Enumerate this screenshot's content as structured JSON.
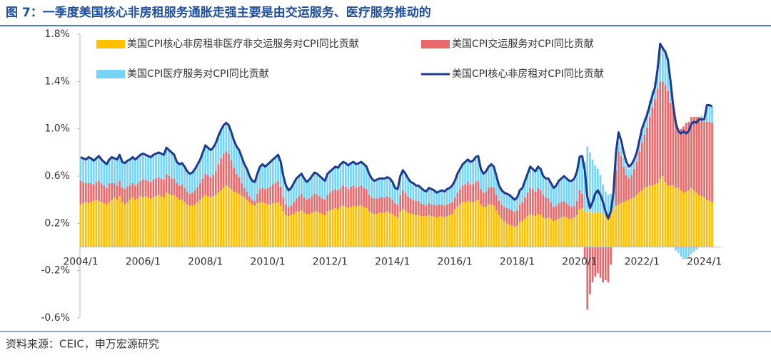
{
  "chart_data": {
    "type": "stacked-bar-line",
    "title": "图 7：一季度美国核心非房租服务通胀走强主要是由交运服务、医疗服务推动的",
    "source": "资料来源：CEIC，申万宏源研究",
    "categories": [
      "2004/1",
      null,
      null,
      null,
      null,
      null,
      null,
      null,
      null,
      null,
      null,
      null,
      null,
      null,
      null,
      null,
      null,
      null,
      null,
      null,
      null,
      null,
      null,
      null,
      "2006/1",
      null,
      null,
      null,
      null,
      null,
      null,
      null,
      null,
      null,
      null,
      null,
      null,
      null,
      null,
      null,
      null,
      null,
      null,
      null,
      null,
      null,
      null,
      null,
      "2008/1",
      null,
      null,
      null,
      null,
      null,
      null,
      null,
      null,
      null,
      null,
      null,
      null,
      null,
      null,
      null,
      null,
      null,
      null,
      null,
      null,
      null,
      null,
      null,
      "2010/1",
      null,
      null,
      null,
      null,
      null,
      null,
      null,
      null,
      null,
      null,
      null,
      null,
      null,
      null,
      null,
      null,
      null,
      null,
      null,
      null,
      null,
      null,
      null,
      "2012/1",
      null,
      null,
      null,
      null,
      null,
      null,
      null,
      null,
      null,
      null,
      null,
      null,
      null,
      null,
      null,
      null,
      null,
      null,
      null,
      null,
      null,
      null,
      null,
      "2014/1",
      null,
      null,
      null,
      null,
      null,
      null,
      null,
      null,
      null,
      null,
      null,
      null,
      null,
      null,
      null,
      null,
      null,
      null,
      null,
      null,
      null,
      null,
      null,
      "2016/1",
      null,
      null,
      null,
      null,
      null,
      null,
      null,
      null,
      null,
      null,
      null,
      null,
      null,
      null,
      null,
      null,
      null,
      null,
      null,
      null,
      null,
      null,
      null,
      "2018/1",
      null,
      null,
      null,
      null,
      null,
      null,
      null,
      null,
      null,
      null,
      null,
      null,
      null,
      null,
      null,
      null,
      null,
      null,
      null,
      null,
      null,
      null,
      null,
      "2020/1",
      null,
      null,
      null,
      null,
      null,
      null,
      null,
      null,
      null,
      null,
      null,
      null,
      null,
      null,
      null,
      null,
      null,
      null,
      null,
      null,
      null,
      null,
      null,
      "2022/1",
      null,
      null,
      null,
      null,
      null,
      null,
      null,
      null,
      null,
      null,
      null,
      null,
      null,
      null,
      null,
      null,
      null,
      null,
      null,
      null,
      null,
      null,
      null,
      "2024/1",
      null,
      null,
      null
    ],
    "series": [
      {
        "name": "美国CPI核心非房租非医疗非交运服务对CPI同比贡献",
        "color": "#ffc000",
        "kind": "bar",
        "values": [
          0.36,
          0.37,
          0.38,
          0.37,
          0.38,
          0.39,
          0.4,
          0.39,
          0.38,
          0.37,
          0.36,
          0.38,
          0.4,
          0.42,
          0.4,
          0.43,
          0.38,
          0.36,
          0.38,
          0.4,
          0.42,
          0.4,
          0.41,
          0.43,
          0.42,
          0.43,
          0.42,
          0.41,
          0.42,
          0.43,
          0.44,
          0.43,
          0.42,
          0.46,
          0.45,
          0.44,
          0.44,
          0.42,
          0.4,
          0.4,
          0.38,
          0.36,
          0.35,
          0.35,
          0.36,
          0.38,
          0.4,
          0.42,
          0.44,
          0.43,
          0.42,
          0.43,
          0.44,
          0.46,
          0.48,
          0.5,
          0.52,
          0.51,
          0.49,
          0.47,
          0.46,
          0.45,
          0.43,
          0.42,
          0.4,
          0.38,
          0.36,
          0.35,
          0.37,
          0.38,
          0.38,
          0.37,
          0.36,
          0.36,
          0.37,
          0.37,
          0.38,
          0.35,
          0.3,
          0.27,
          0.26,
          0.27,
          0.28,
          0.3,
          0.3,
          0.31,
          0.29,
          0.28,
          0.28,
          0.29,
          0.3,
          0.3,
          0.29,
          0.28,
          0.27,
          0.3,
          0.31,
          0.32,
          0.33,
          0.32,
          0.34,
          0.35,
          0.34,
          0.33,
          0.34,
          0.35,
          0.34,
          0.35,
          0.35,
          0.34,
          0.33,
          0.3,
          0.29,
          0.28,
          0.28,
          0.29,
          0.29,
          0.29,
          0.3,
          0.29,
          0.28,
          0.26,
          0.25,
          0.3,
          0.32,
          0.31,
          0.29,
          0.28,
          0.28,
          0.27,
          0.27,
          0.26,
          0.26,
          0.26,
          0.27,
          0.26,
          0.26,
          0.25,
          0.26,
          0.26,
          0.25,
          0.26,
          0.27,
          0.28,
          0.32,
          0.34,
          0.36,
          0.38,
          0.38,
          0.39,
          0.38,
          0.38,
          0.39,
          0.4,
          0.36,
          0.34,
          0.34,
          0.36,
          0.36,
          0.35,
          0.31,
          0.27,
          0.24,
          0.22,
          0.2,
          0.19,
          0.18,
          0.17,
          0.18,
          0.21,
          0.22,
          0.24,
          0.26,
          0.28,
          0.27,
          0.26,
          0.28,
          0.27,
          0.25,
          0.24,
          0.25,
          0.24,
          0.22,
          0.23,
          0.24,
          0.25,
          0.26,
          0.25,
          0.24,
          0.24,
          0.25,
          0.27,
          0.32,
          0.33,
          0.3,
          0.3,
          0.3,
          0.29,
          0.29,
          0.3,
          0.29,
          0.28,
          0.27,
          0.26,
          0.28,
          0.32,
          0.35,
          0.36,
          0.37,
          0.38,
          0.39,
          0.4,
          0.41,
          0.42,
          0.44,
          0.46,
          0.48,
          0.5,
          0.51,
          0.52,
          0.52,
          0.53,
          0.54,
          0.58,
          0.6,
          0.55,
          0.52,
          0.52,
          0.52,
          0.5,
          0.5,
          0.48,
          0.46,
          0.47,
          0.48,
          0.5,
          0.48,
          0.46,
          0.44,
          0.43,
          0.42,
          0.4,
          0.39,
          0.38
        ]
      },
      {
        "name": "美国CPI交运服务对CPI同比贡献",
        "color": "#e8696b",
        "kind": "bar",
        "values": [
          0.2,
          0.18,
          0.16,
          0.17,
          0.16,
          0.14,
          0.15,
          0.17,
          0.16,
          0.15,
          0.14,
          0.16,
          0.14,
          0.12,
          0.12,
          0.13,
          0.12,
          0.13,
          0.13,
          0.12,
          0.12,
          0.12,
          0.13,
          0.13,
          0.15,
          0.14,
          0.14,
          0.14,
          0.15,
          0.15,
          0.15,
          0.15,
          0.15,
          0.16,
          0.15,
          0.14,
          0.14,
          0.12,
          0.12,
          0.13,
          0.12,
          0.11,
          0.1,
          0.11,
          0.12,
          0.13,
          0.14,
          0.16,
          0.18,
          0.18,
          0.17,
          0.18,
          0.2,
          0.24,
          0.27,
          0.29,
          0.29,
          0.28,
          0.24,
          0.2,
          0.16,
          0.14,
          0.11,
          0.08,
          0.07,
          0.05,
          0.04,
          0.04,
          0.08,
          0.11,
          0.12,
          0.12,
          0.14,
          0.15,
          0.16,
          0.17,
          0.18,
          0.16,
          0.12,
          0.09,
          0.08,
          0.08,
          0.1,
          0.11,
          0.13,
          0.14,
          0.13,
          0.12,
          0.13,
          0.14,
          0.15,
          0.14,
          0.14,
          0.13,
          0.13,
          0.14,
          0.15,
          0.16,
          0.16,
          0.16,
          0.16,
          0.17,
          0.17,
          0.16,
          0.17,
          0.17,
          0.16,
          0.16,
          0.17,
          0.16,
          0.16,
          0.14,
          0.13,
          0.13,
          0.13,
          0.13,
          0.13,
          0.13,
          0.13,
          0.13,
          0.12,
          0.11,
          0.11,
          0.14,
          0.16,
          0.15,
          0.14,
          0.13,
          0.12,
          0.12,
          0.12,
          0.11,
          0.1,
          0.09,
          0.1,
          0.1,
          0.1,
          0.1,
          0.1,
          0.1,
          0.1,
          0.1,
          0.1,
          0.1,
          0.1,
          0.12,
          0.13,
          0.14,
          0.15,
          0.16,
          0.15,
          0.15,
          0.16,
          0.16,
          0.13,
          0.12,
          0.13,
          0.14,
          0.15,
          0.15,
          0.13,
          0.12,
          0.12,
          0.12,
          0.13,
          0.13,
          0.13,
          0.13,
          0.13,
          0.15,
          0.16,
          0.18,
          0.2,
          0.22,
          0.22,
          0.21,
          0.22,
          0.21,
          0.19,
          0.18,
          0.16,
          0.14,
          0.12,
          0.12,
          0.13,
          0.13,
          0.13,
          0.12,
          0.11,
          0.1,
          0.1,
          0.12,
          0.16,
          0.12,
          -0.1,
          -0.53,
          -0.4,
          -0.3,
          -0.25,
          -0.22,
          -0.26,
          -0.3,
          -0.28,
          -0.3,
          -0.15,
          0.0,
          0.3,
          0.45,
          0.4,
          0.3,
          0.22,
          0.18,
          0.2,
          0.24,
          0.28,
          0.35,
          0.4,
          0.45,
          0.5,
          0.58,
          0.66,
          0.72,
          0.8,
          0.82,
          0.8,
          0.82,
          0.8,
          0.7,
          0.68,
          0.58,
          0.5,
          0.52,
          0.56,
          0.58,
          0.58,
          0.6,
          0.62,
          0.64,
          0.66,
          0.66,
          0.64,
          0.66,
          0.67,
          0.67
        ]
      },
      {
        "name": "美国CPI医疗服务对CPI同比贡献",
        "color": "#75d4f7",
        "kind": "bar",
        "values": [
          0.2,
          0.2,
          0.2,
          0.22,
          0.21,
          0.2,
          0.2,
          0.21,
          0.2,
          0.2,
          0.2,
          0.2,
          0.22,
          0.21,
          0.22,
          0.22,
          0.22,
          0.22,
          0.22,
          0.22,
          0.22,
          0.22,
          0.22,
          0.22,
          0.22,
          0.21,
          0.21,
          0.21,
          0.21,
          0.21,
          0.21,
          0.21,
          0.21,
          0.22,
          0.22,
          0.22,
          0.2,
          0.18,
          0.18,
          0.18,
          0.18,
          0.17,
          0.17,
          0.17,
          0.18,
          0.19,
          0.2,
          0.22,
          0.24,
          0.23,
          0.23,
          0.23,
          0.24,
          0.24,
          0.24,
          0.24,
          0.24,
          0.24,
          0.24,
          0.23,
          0.23,
          0.23,
          0.22,
          0.2,
          0.19,
          0.17,
          0.16,
          0.16,
          0.17,
          0.19,
          0.2,
          0.19,
          0.2,
          0.21,
          0.21,
          0.22,
          0.22,
          0.21,
          0.18,
          0.16,
          0.14,
          0.15,
          0.16,
          0.17,
          0.17,
          0.17,
          0.16,
          0.15,
          0.16,
          0.17,
          0.18,
          0.18,
          0.17,
          0.17,
          0.16,
          0.18,
          0.18,
          0.18,
          0.19,
          0.19,
          0.2,
          0.2,
          0.2,
          0.2,
          0.2,
          0.2,
          0.2,
          0.2,
          0.2,
          0.2,
          0.19,
          0.18,
          0.16,
          0.15,
          0.16,
          0.16,
          0.16,
          0.16,
          0.16,
          0.16,
          0.15,
          0.13,
          0.13,
          0.16,
          0.17,
          0.16,
          0.15,
          0.14,
          0.14,
          0.13,
          0.13,
          0.13,
          0.12,
          0.12,
          0.13,
          0.13,
          0.12,
          0.11,
          0.11,
          0.12,
          0.12,
          0.13,
          0.13,
          0.14,
          0.14,
          0.16,
          0.17,
          0.18,
          0.19,
          0.19,
          0.19,
          0.2,
          0.21,
          0.21,
          0.17,
          0.16,
          0.17,
          0.18,
          0.19,
          0.18,
          0.16,
          0.13,
          0.12,
          0.12,
          0.12,
          0.12,
          0.11,
          0.1,
          0.11,
          0.12,
          0.12,
          0.14,
          0.16,
          0.18,
          0.17,
          0.17,
          0.18,
          0.18,
          0.16,
          0.16,
          0.17,
          0.16,
          0.16,
          0.17,
          0.19,
          0.2,
          0.21,
          0.21,
          0.21,
          0.22,
          0.23,
          0.25,
          0.3,
          0.32,
          0.42,
          0.55,
          0.5,
          0.45,
          0.4,
          0.36,
          0.32,
          0.25,
          0.2,
          0.18,
          0.17,
          0.13,
          0.1,
          0.08,
          0.08,
          0.08,
          0.08,
          0.08,
          0.08,
          0.08,
          0.09,
          0.09,
          0.12,
          0.14,
          0.14,
          0.14,
          0.14,
          0.14,
          0.2,
          0.32,
          0.3,
          0.3,
          0.28,
          0.2,
          0.0,
          -0.03,
          -0.05,
          -0.08,
          -0.1,
          -0.1,
          -0.08,
          -0.06,
          -0.04,
          -0.02,
          0.0,
          0.02,
          0.02,
          0.14,
          0.14,
          0.14
        ]
      },
      {
        "name": "美国CPI核心非房租对CPI同比贡献",
        "color": "#1f3a8c",
        "kind": "line",
        "values": [
          0.76,
          0.75,
          0.74,
          0.76,
          0.75,
          0.73,
          0.75,
          0.77,
          0.74,
          0.72,
          0.7,
          0.74,
          0.76,
          0.75,
          0.74,
          0.78,
          0.72,
          0.71,
          0.73,
          0.74,
          0.76,
          0.74,
          0.76,
          0.78,
          0.79,
          0.78,
          0.77,
          0.76,
          0.78,
          0.79,
          0.8,
          0.79,
          0.78,
          0.84,
          0.82,
          0.8,
          0.78,
          0.72,
          0.7,
          0.71,
          0.68,
          0.64,
          0.62,
          0.63,
          0.66,
          0.7,
          0.74,
          0.8,
          0.86,
          0.84,
          0.82,
          0.84,
          0.88,
          0.94,
          0.99,
          1.03,
          1.05,
          1.03,
          0.97,
          0.9,
          0.85,
          0.82,
          0.76,
          0.7,
          0.66,
          0.6,
          0.56,
          0.55,
          0.62,
          0.68,
          0.7,
          0.68,
          0.7,
          0.72,
          0.74,
          0.76,
          0.78,
          0.72,
          0.6,
          0.52,
          0.48,
          0.5,
          0.54,
          0.58,
          0.6,
          0.62,
          0.58,
          0.55,
          0.57,
          0.6,
          0.63,
          0.62,
          0.6,
          0.58,
          0.56,
          0.62,
          0.64,
          0.66,
          0.68,
          0.67,
          0.7,
          0.72,
          0.71,
          0.69,
          0.71,
          0.72,
          0.7,
          0.71,
          0.72,
          0.7,
          0.68,
          0.62,
          0.58,
          0.56,
          0.57,
          0.58,
          0.58,
          0.58,
          0.59,
          0.58,
          0.55,
          0.5,
          0.49,
          0.6,
          0.65,
          0.62,
          0.58,
          0.55,
          0.54,
          0.52,
          0.52,
          0.5,
          0.48,
          0.47,
          0.5,
          0.49,
          0.48,
          0.46,
          0.47,
          0.48,
          0.47,
          0.49,
          0.5,
          0.52,
          0.56,
          0.62,
          0.66,
          0.7,
          0.72,
          0.74,
          0.72,
          0.73,
          0.76,
          0.77,
          0.66,
          0.62,
          0.64,
          0.68,
          0.7,
          0.68,
          0.6,
          0.52,
          0.48,
          0.46,
          0.45,
          0.44,
          0.42,
          0.4,
          0.42,
          0.48,
          0.5,
          0.56,
          0.62,
          0.68,
          0.66,
          0.64,
          0.68,
          0.66,
          0.6,
          0.58,
          0.58,
          0.54,
          0.5,
          0.52,
          0.56,
          0.58,
          0.6,
          0.58,
          0.56,
          0.56,
          0.58,
          0.64,
          0.76,
          0.77,
          0.65,
          0.42,
          0.33,
          0.38,
          0.45,
          0.48,
          0.44,
          0.38,
          0.3,
          0.24,
          0.3,
          0.45,
          0.8,
          0.97,
          0.9,
          0.8,
          0.72,
          0.68,
          0.7,
          0.74,
          0.8,
          0.9,
          1.0,
          1.06,
          1.12,
          1.2,
          1.28,
          1.35,
          1.5,
          1.72,
          1.68,
          1.65,
          1.58,
          1.4,
          1.2,
          1.05,
          0.98,
          0.96,
          0.98,
          0.96,
          0.98,
          1.04,
          1.06,
          1.05,
          1.08,
          1.08,
          1.08,
          1.2,
          1.2,
          1.19
        ]
      }
    ],
    "ylim": [
      -0.6,
      1.8
    ],
    "yticks": [
      {
        "value": -0.6,
        "label": "-0.6%"
      },
      {
        "value": -0.2,
        "label": "-0.2%"
      },
      {
        "value": 0.2,
        "label": "0.2%"
      },
      {
        "value": 0.6,
        "label": "0.6%"
      },
      {
        "value": 1.0,
        "label": "1.0%"
      },
      {
        "value": 1.4,
        "label": "1.4%"
      },
      {
        "value": 1.8,
        "label": "1.8%"
      }
    ]
  }
}
